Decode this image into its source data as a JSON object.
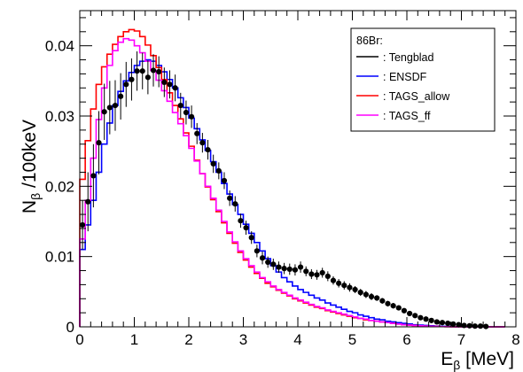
{
  "chart_data": {
    "type": "line",
    "xlabel": {
      "main": "E",
      "sub": "β",
      "rest": " [MeV]"
    },
    "ylabel": {
      "main": "N",
      "sub": "β",
      "rest": " /100keV"
    },
    "xlim": [
      0,
      8
    ],
    "ylim": [
      0,
      0.045
    ],
    "xticks": [
      "0",
      "1",
      "2",
      "3",
      "4",
      "5",
      "6",
      "7",
      "8"
    ],
    "yticks": [
      "0",
      "0.01",
      "0.02",
      "0.03",
      "0.04"
    ],
    "grid": false,
    "legend": {
      "position": "top-right",
      "header": "86Br:",
      "entries": [
        {
          "label": ": Tengblad",
          "color": "#000000"
        },
        {
          "label": ": ENSDF",
          "color": "#0000ff"
        },
        {
          "label": ": TAGS_allow",
          "color": "#ff0000"
        },
        {
          "label": ": TAGS_ff",
          "color": "#ff00ff"
        }
      ]
    },
    "bin_width": 0.1,
    "hist_x": [
      0.0,
      0.1,
      0.2,
      0.3,
      0.4,
      0.5,
      0.6,
      0.7,
      0.8,
      0.9,
      1.0,
      1.1,
      1.2,
      1.3,
      1.4,
      1.5,
      1.6,
      1.7,
      1.8,
      1.9,
      2.0,
      2.1,
      2.2,
      2.3,
      2.4,
      2.5,
      2.6,
      2.7,
      2.8,
      2.9,
      3.0,
      3.1,
      3.2,
      3.3,
      3.4,
      3.5,
      3.6,
      3.7,
      3.8,
      3.9,
      4.0,
      4.1,
      4.2,
      4.3,
      4.4,
      4.5,
      4.6,
      4.7,
      4.8,
      4.9,
      5.0,
      5.1,
      5.2,
      5.3,
      5.4,
      5.5,
      5.6,
      5.7,
      5.8,
      5.9,
      6.0,
      6.1,
      6.2,
      6.3,
      6.4,
      6.5,
      6.6,
      6.7,
      6.8,
      6.9,
      7.0,
      7.1,
      7.2,
      7.3,
      7.4,
      7.5,
      7.6,
      7.7
    ],
    "series": [
      {
        "name": "ENSDF",
        "color": "#0000ff",
        "kind": "histogram",
        "values": [
          0.011,
          0.0145,
          0.018,
          0.022,
          0.026,
          0.029,
          0.0315,
          0.0335,
          0.035,
          0.0362,
          0.0372,
          0.0378,
          0.038,
          0.0378,
          0.0372,
          0.0363,
          0.0352,
          0.034,
          0.0326,
          0.0312,
          0.0297,
          0.0282,
          0.0266,
          0.0251,
          0.0235,
          0.022,
          0.0204,
          0.0189,
          0.0174,
          0.016,
          0.0146,
          0.0133,
          0.012,
          0.0108,
          0.0097,
          0.0087,
          0.0078,
          0.007,
          0.0064,
          0.0058,
          0.0053,
          0.0049,
          0.0045,
          0.0041,
          0.0038,
          0.0034,
          0.0031,
          0.0028,
          0.0025,
          0.0022,
          0.002,
          0.0017,
          0.0015,
          0.0013,
          0.0011,
          0.001,
          0.0008,
          0.0007,
          0.0006,
          0.0005,
          0.0004,
          0.0003,
          0.00025,
          0.0002,
          0.00015,
          0.0001,
          8e-05,
          5e-05,
          3e-05,
          2e-05,
          1e-05,
          1e-05,
          0,
          0,
          0,
          0,
          0,
          0
        ]
      },
      {
        "name": "TAGS_allow",
        "color": "#ff0000",
        "kind": "histogram",
        "values": [
          0.021,
          0.0265,
          0.031,
          0.0345,
          0.037,
          0.0388,
          0.0402,
          0.0413,
          0.042,
          0.0423,
          0.0421,
          0.0413,
          0.0401,
          0.0386,
          0.0369,
          0.0352,
          0.0333,
          0.0315,
          0.0296,
          0.0276,
          0.0257,
          0.0237,
          0.0218,
          0.0199,
          0.0181,
          0.0164,
          0.0148,
          0.0133,
          0.0119,
          0.0106,
          0.0095,
          0.0085,
          0.0076,
          0.0069,
          0.0062,
          0.0057,
          0.0052,
          0.0048,
          0.0044,
          0.004,
          0.0037,
          0.0034,
          0.0031,
          0.0028,
          0.0026,
          0.0023,
          0.0021,
          0.0019,
          0.0017,
          0.0015,
          0.0013,
          0.0012,
          0.001,
          0.0009,
          0.0008,
          0.0007,
          0.0006,
          0.0005,
          0.0004,
          0.0003,
          0.00025,
          0.0002,
          0.00015,
          0.0001,
          8e-05,
          5e-05,
          3e-05,
          2e-05,
          1e-05,
          0,
          0,
          0,
          0,
          0,
          0,
          0,
          0,
          0
        ]
      },
      {
        "name": "TAGS_ff",
        "color": "#ff00ff",
        "kind": "histogram",
        "values": [
          0.0125,
          0.018,
          0.024,
          0.0295,
          0.034,
          0.0372,
          0.0393,
          0.0405,
          0.041,
          0.0408,
          0.04,
          0.039,
          0.0378,
          0.0365,
          0.0351,
          0.0336,
          0.0321,
          0.0305,
          0.0289,
          0.0272,
          0.0254,
          0.0236,
          0.0218,
          0.02,
          0.0183,
          0.0166,
          0.015,
          0.0135,
          0.0121,
          0.0108,
          0.0097,
          0.0087,
          0.0078,
          0.007,
          0.0064,
          0.0058,
          0.0053,
          0.0049,
          0.0045,
          0.0041,
          0.0038,
          0.0035,
          0.0032,
          0.0029,
          0.0027,
          0.0024,
          0.0022,
          0.002,
          0.0018,
          0.0016,
          0.0014,
          0.0012,
          0.0011,
          0.0009,
          0.0008,
          0.0007,
          0.0006,
          0.0005,
          0.0004,
          0.0003,
          0.00025,
          0.0002,
          0.00015,
          0.0001,
          8e-05,
          5e-05,
          3e-05,
          2e-05,
          1e-05,
          0,
          0,
          0,
          0,
          0,
          0,
          0,
          0,
          0
        ]
      },
      {
        "name": "Tengblad",
        "color": "#000000",
        "kind": "points",
        "x": [
          0.05,
          0.15,
          0.25,
          0.35,
          0.45,
          0.55,
          0.65,
          0.75,
          0.85,
          0.95,
          1.05,
          1.15,
          1.25,
          1.35,
          1.45,
          1.55,
          1.65,
          1.75,
          1.85,
          1.95,
          2.05,
          2.15,
          2.25,
          2.35,
          2.45,
          2.55,
          2.65,
          2.75,
          2.85,
          2.95,
          3.05,
          3.15,
          3.25,
          3.35,
          3.45,
          3.55,
          3.65,
          3.75,
          3.85,
          3.95,
          4.05,
          4.15,
          4.25,
          4.35,
          4.45,
          4.55,
          4.65,
          4.75,
          4.85,
          4.95,
          5.05,
          5.15,
          5.25,
          5.35,
          5.45,
          5.55,
          5.65,
          5.75,
          5.85,
          5.95,
          6.05,
          6.15,
          6.25,
          6.35,
          6.45,
          6.55,
          6.65,
          6.75,
          6.85,
          6.95,
          7.05,
          7.15,
          7.25,
          7.35,
          7.45
        ],
        "y": [
          0.0145,
          0.0178,
          0.0215,
          0.0262,
          0.0306,
          0.0312,
          0.0315,
          0.0328,
          0.0345,
          0.0352,
          0.0364,
          0.0364,
          0.0355,
          0.0365,
          0.0363,
          0.0348,
          0.0345,
          0.034,
          0.0315,
          0.0305,
          0.0299,
          0.0275,
          0.0262,
          0.0252,
          0.0232,
          0.0222,
          0.0208,
          0.0183,
          0.0175,
          0.0151,
          0.0141,
          0.0127,
          0.0108,
          0.0098,
          0.0092,
          0.0089,
          0.0085,
          0.0083,
          0.0082,
          0.0081,
          0.0085,
          0.0079,
          0.0075,
          0.0074,
          0.0077,
          0.0072,
          0.0066,
          0.0062,
          0.0059,
          0.0056,
          0.0053,
          0.0049,
          0.0046,
          0.0043,
          0.0041,
          0.0037,
          0.0033,
          0.003,
          0.0027,
          0.0023,
          0.0019,
          0.0016,
          0.0013,
          0.0011,
          0.0009,
          0.0007,
          0.0006,
          0.0005,
          0.0004,
          0.0003,
          0.0002,
          0.00015,
          0.0001,
          0.0001,
          5e-05
        ],
        "yerr": [
          0.0035,
          0.0042,
          0.0045,
          0.0045,
          0.004,
          0.0038,
          0.0036,
          0.0033,
          0.0032,
          0.003,
          0.0028,
          0.0026,
          0.0024,
          0.0023,
          0.0022,
          0.0021,
          0.002,
          0.0019,
          0.0018,
          0.0017,
          0.0016,
          0.0015,
          0.0014,
          0.0014,
          0.0013,
          0.0012,
          0.0012,
          0.0011,
          0.0011,
          0.001,
          0.001,
          0.0009,
          0.0009,
          0.0009,
          0.0008,
          0.0008,
          0.0008,
          0.0008,
          0.0008,
          0.0008,
          0.0008,
          0.0007,
          0.0007,
          0.0007,
          0.0007,
          0.0007,
          0.0006,
          0.0006,
          0.0006,
          0.0006,
          0.0005,
          0.0005,
          0.0005,
          0.0005,
          0.0004,
          0.0004,
          0.0004,
          0.0004,
          0.0003,
          0.0003,
          0.0003,
          0.0003,
          0.0002,
          0.0002,
          0.0002,
          0.0002,
          0.0002,
          0.0001,
          0.0001,
          0.0001,
          0.0001,
          0.0001,
          0.0001,
          0.0001,
          0.0001
        ]
      }
    ]
  }
}
